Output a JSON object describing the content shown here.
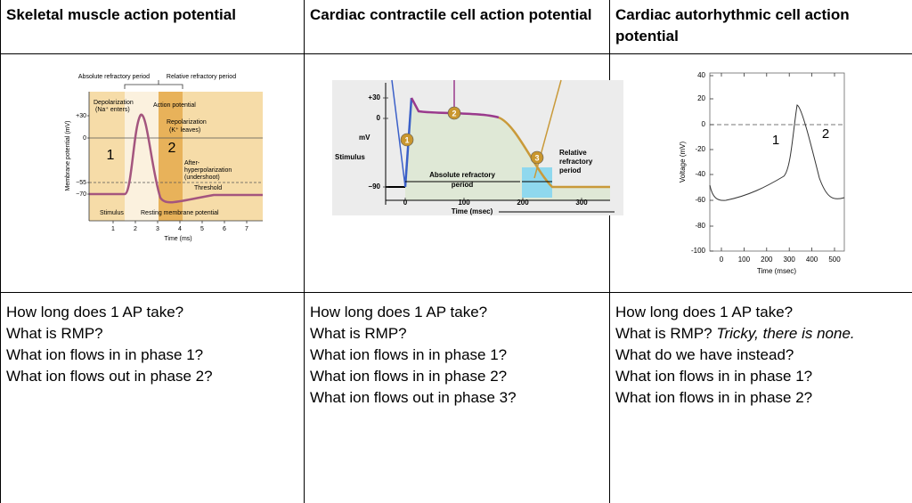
{
  "table": {
    "headers": [
      "Skeletal muscle action potential",
      "Cardiac contractile cell action potential",
      "Cardiac autorhythmic cell action potential"
    ],
    "questions": [
      [
        "How long does 1 AP take?",
        "What is RMP?",
        "What ion flows in in phase 1?",
        "What ion flows out in phase 2?"
      ],
      [
        "How long does 1 AP take?",
        "What is RMP?",
        "What ion flows in in phase 1?",
        "What ion flows in in phase 2?",
        "What ion flows out in phase 3?"
      ],
      [
        "How long does 1 AP take?",
        [
          "What is RMP? ",
          "Tricky,  there is none."
        ],
        "What do we have instead?",
        "What ion flows in in phase 1?",
        "What ion flows in in phase 2?"
      ]
    ],
    "figures": [
      {
        "top_labels": [
          "Absolute refractory period",
          "Relative refractory period"
        ],
        "annotations": [
          "Depolarization",
          "(Na⁺ enters)",
          "Action potential",
          "Repolarization",
          "(K⁺ leaves)",
          "After-",
          "hyperpolarization",
          "(undershoot)",
          "Threshold",
          "Stimulus",
          "Resting membrane potential"
        ],
        "phases": [
          "1",
          "2"
        ],
        "y_label": "Membrane potential (mV)",
        "yticks": [
          "+30",
          "0",
          "−55",
          "−70"
        ],
        "x_label": "Time (ms)",
        "xticks": [
          1,
          2,
          3,
          4,
          5,
          6,
          7
        ]
      },
      {
        "annotations": [
          "Stimulus",
          "Absolute refractory",
          "period",
          "Relative",
          "refractory",
          "period"
        ],
        "phases": [
          "1",
          "2",
          "3"
        ],
        "y_label": "mV",
        "yticks": [
          "+30",
          "0",
          "−90"
        ],
        "x_label": "Time (msec)",
        "xticks": [
          0,
          100,
          200,
          300
        ]
      },
      {
        "phases": [
          "1",
          "2"
        ],
        "y_label": "Voltage (mV)",
        "yticks": [
          40,
          20,
          0,
          -20,
          -40,
          -60,
          -80,
          -100
        ],
        "x_label": "Time (msec)",
        "xticks": [
          0,
          100,
          200,
          300,
          400,
          500
        ]
      }
    ]
  }
}
